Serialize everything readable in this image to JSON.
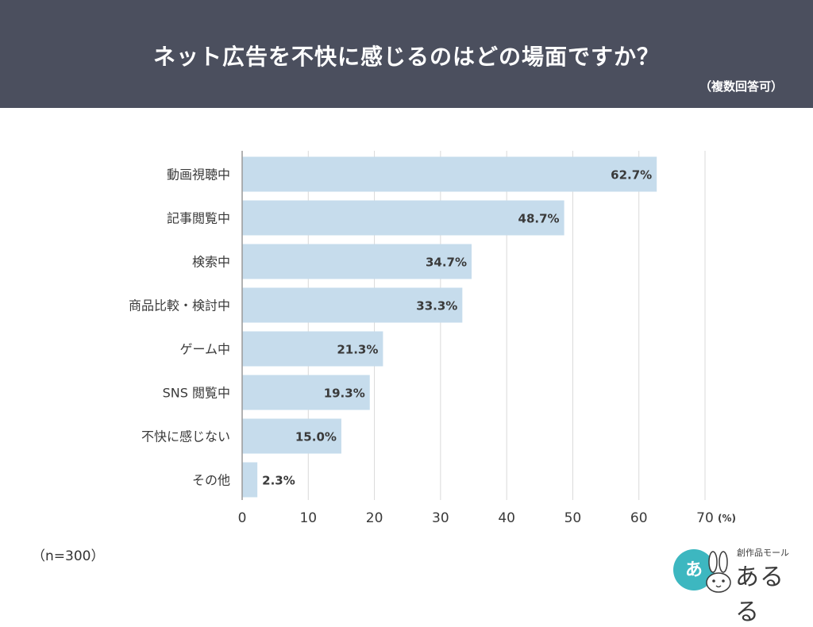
{
  "header": {
    "title": "ネット広告を不快に感じるのはどの場面ですか？",
    "subtitle": "（複数回答可）"
  },
  "chart_data": {
    "type": "bar",
    "orientation": "horizontal",
    "categories": [
      "動画視聴中",
      "記事閲覧中",
      "検索中",
      "商品比較・検討中",
      "ゲーム中",
      "SNS 閲覧中",
      "不快に感じない",
      "その他"
    ],
    "values": [
      62.7,
      48.7,
      34.7,
      33.3,
      21.3,
      19.3,
      15.0,
      2.3
    ],
    "value_labels": [
      "62.7%",
      "48.7%",
      "34.7%",
      "33.3%",
      "21.3%",
      "19.3%",
      "15.0%",
      "2.3%"
    ],
    "xlim": [
      0,
      70
    ],
    "xticks": [
      "0",
      "10",
      "20",
      "30",
      "40",
      "50",
      "60",
      "70"
    ],
    "unit_label": "(%)",
    "grid": true,
    "bar_color": "#c6dcec",
    "grid_color": "#d9d9d9",
    "axis_color": "#999999",
    "text_color": "#3a3a3a"
  },
  "footer": {
    "sample_size": "（n=300）"
  },
  "logo": {
    "mark": "あ",
    "sub_text": "創作品モール",
    "main_text": "あるる",
    "accent_color": "#3db7c0"
  }
}
